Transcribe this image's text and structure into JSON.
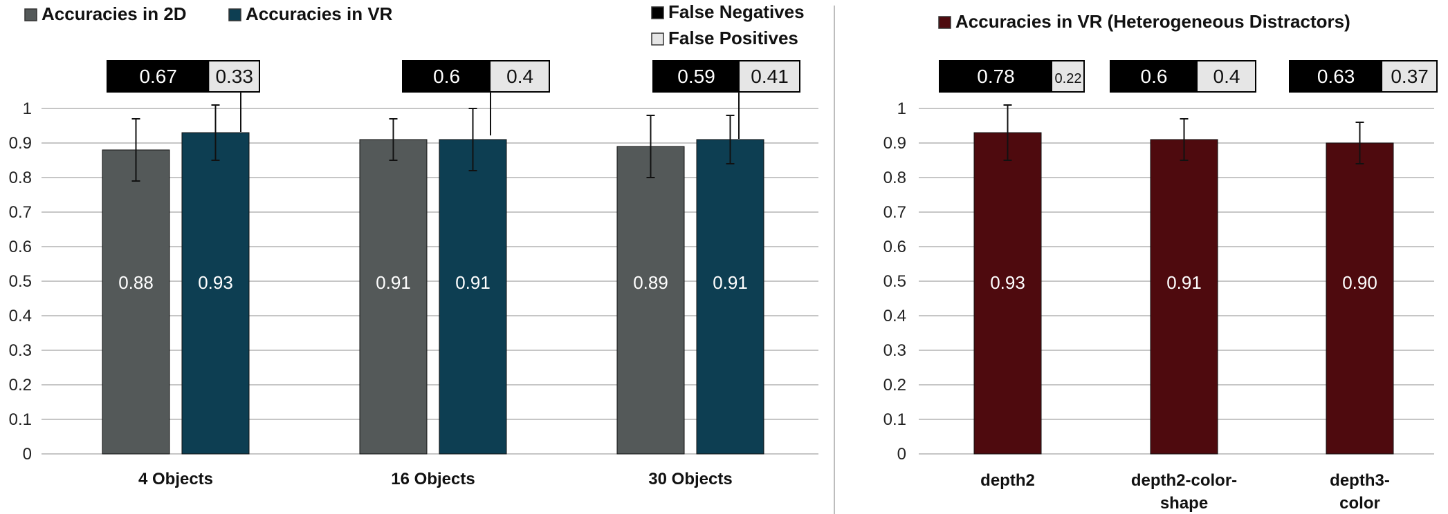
{
  "colors": {
    "acc2d": "#545959",
    "accvr": "#0d3e52",
    "accvr_het": "#4e0a0e",
    "false_negatives": "#000000",
    "false_positives": "#e6e6e6",
    "grid": "#b4b4b4",
    "divider": "#bdbdbd"
  },
  "chart_data": [
    {
      "type": "bar",
      "categories": [
        "4 Objects",
        "16 Objects",
        "30 Objects"
      ],
      "series": [
        {
          "name": "Accuracies in 2D",
          "values": [
            0.88,
            0.91,
            0.89
          ],
          "labels": [
            "0.88",
            "0.91",
            "0.89"
          ],
          "error_low": [
            0.79,
            0.85,
            0.8
          ],
          "error_high": [
            0.97,
            0.97,
            0.98
          ]
        },
        {
          "name": "Accuracies in VR",
          "values": [
            0.93,
            0.91,
            0.91
          ],
          "labels": [
            "0.93",
            "0.91",
            "0.91"
          ],
          "error_low": [
            0.85,
            0.82,
            0.84
          ],
          "error_high": [
            1.01,
            1.0,
            0.98
          ]
        }
      ],
      "error_breakdown": {
        "legend": [
          "False Negatives",
          "False Positives"
        ],
        "false_negatives": [
          0.67,
          0.6,
          0.59
        ],
        "false_positives": [
          0.33,
          0.4,
          0.41
        ],
        "fn_labels": [
          "0.67",
          "0.6",
          "0.59"
        ],
        "fp_labels": [
          "0.33",
          "0.4",
          "0.41"
        ]
      },
      "ylim": [
        0,
        1
      ],
      "yticks": [
        "0",
        "0.1",
        "0.2",
        "0.3",
        "0.4",
        "0.5",
        "0.6",
        "0.7",
        "0.8",
        "0.9",
        "1"
      ],
      "grid": true,
      "legend_position": "top"
    },
    {
      "type": "bar",
      "categories": [
        [
          "depth2"
        ],
        [
          "depth2-color-",
          "shape"
        ],
        [
          "depth3-",
          "color"
        ]
      ],
      "series": [
        {
          "name": "Accuracies in VR (Heterogeneous Distractors)",
          "values": [
            0.93,
            0.91,
            0.9
          ],
          "labels": [
            "0.93",
            "0.91",
            "0.90"
          ],
          "error_low": [
            0.85,
            0.85,
            0.84
          ],
          "error_high": [
            1.01,
            0.97,
            0.96
          ]
        }
      ],
      "error_breakdown": {
        "false_negatives": [
          0.78,
          0.6,
          0.63
        ],
        "false_positives": [
          0.22,
          0.4,
          0.37
        ],
        "fn_labels": [
          "0.78",
          "0.6",
          "0.63"
        ],
        "fp_labels": [
          "0.22",
          "0.4",
          "0.37"
        ]
      },
      "ylim": [
        0,
        1
      ],
      "yticks": [
        "0",
        "0.1",
        "0.2",
        "0.3",
        "0.4",
        "0.5",
        "0.6",
        "0.7",
        "0.8",
        "0.9",
        "1"
      ],
      "grid": true,
      "legend_position": "top"
    }
  ]
}
